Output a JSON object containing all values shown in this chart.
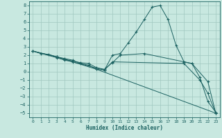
{
  "xlabel": "Humidex (Indice chaleur)",
  "xlim": [
    -0.5,
    23.5
  ],
  "ylim": [
    -5.5,
    8.5
  ],
  "yticks": [
    -5,
    -4,
    -3,
    -2,
    -1,
    0,
    1,
    2,
    3,
    4,
    5,
    6,
    7,
    8
  ],
  "xticks": [
    0,
    1,
    2,
    3,
    4,
    5,
    6,
    7,
    8,
    9,
    10,
    11,
    12,
    13,
    14,
    15,
    16,
    17,
    18,
    19,
    20,
    21,
    22,
    23
  ],
  "background_color": "#c8e8e0",
  "grid_color": "#a0c8c0",
  "line_color": "#1a6060",
  "series": [
    {
      "x": [
        0,
        1,
        2,
        3,
        4,
        5,
        6,
        7,
        8,
        9,
        10,
        11,
        12,
        13,
        14,
        15,
        16,
        17,
        18,
        19,
        20,
        21,
        22,
        23
      ],
      "y": [
        2.5,
        2.2,
        2.1,
        1.8,
        1.6,
        1.4,
        1.0,
        0.8,
        0.3,
        0.2,
        2.0,
        2.2,
        3.5,
        4.8,
        6.3,
        7.8,
        8.0,
        6.3,
        3.2,
        1.2,
        1.0,
        -0.7,
        -3.6,
        -4.9
      ]
    },
    {
      "x": [
        0,
        3,
        4,
        5,
        6,
        7,
        8,
        9,
        10,
        11,
        14,
        19,
        20,
        22,
        23
      ],
      "y": [
        2.5,
        1.8,
        1.5,
        1.3,
        1.1,
        1.0,
        0.5,
        0.3,
        1.1,
        2.0,
        2.2,
        1.2,
        1.0,
        -1.2,
        -5.0
      ]
    },
    {
      "x": [
        0,
        3,
        8,
        23
      ],
      "y": [
        2.5,
        1.8,
        0.3,
        -5.0
      ]
    },
    {
      "x": [
        0,
        3,
        4,
        5,
        9,
        10,
        19,
        21,
        22,
        23
      ],
      "y": [
        2.5,
        1.7,
        1.4,
        1.2,
        0.2,
        1.2,
        1.0,
        -1.0,
        -2.6,
        -5.0
      ]
    }
  ]
}
